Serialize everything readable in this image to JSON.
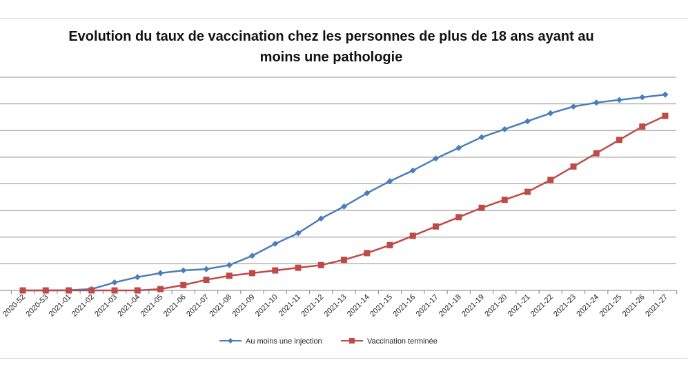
{
  "chart_data": {
    "type": "line",
    "title_line1": "Evolution du taux de vaccination chez les personnes de plus de 18 ans ayant au",
    "title_line2": "moins une pathologie",
    "categories": [
      "2020-52",
      "2020-53",
      "2021-01",
      "2021-02",
      "2021-03",
      "2021-04",
      "2021-05",
      "2021-06",
      "2021-07",
      "2021-08",
      "2021-09",
      "2021-10",
      "2021-11",
      "2021-12",
      "2021-13",
      "2021-14",
      "2021-15",
      "2021-16",
      "2021-17",
      "2021-18",
      "2021-19",
      "2021-20",
      "2021-21",
      "2021-22",
      "2021-23",
      "2021-24",
      "2021-25",
      "2021-26",
      "2021-27"
    ],
    "series": [
      {
        "name": "Au moins une injection",
        "color": "#4a7ebb",
        "values": [
          0.0,
          0.0,
          0.1,
          0.5,
          3.0,
          5.0,
          6.5,
          7.5,
          8.0,
          9.5,
          13.0,
          17.5,
          21.5,
          27.0,
          31.5,
          36.5,
          41.0,
          45.0,
          49.5,
          53.5,
          57.5,
          60.5,
          63.5,
          66.5,
          69.0,
          70.5,
          71.5,
          72.5,
          73.5
        ]
      },
      {
        "name": "Vaccination terminée",
        "color": "#be4b48",
        "values": [
          0.0,
          0.0,
          0.0,
          0.0,
          0.0,
          0.0,
          0.5,
          2.0,
          4.0,
          5.5,
          6.5,
          7.5,
          8.5,
          9.5,
          11.5,
          14.0,
          17.0,
          20.5,
          24.0,
          27.5,
          31.0,
          34.0,
          37.0,
          41.5,
          46.5,
          51.5,
          56.5,
          61.5,
          65.5
        ]
      }
    ],
    "ylim": [
      0,
      80
    ],
    "grid": true,
    "legend_position": "bottom"
  }
}
